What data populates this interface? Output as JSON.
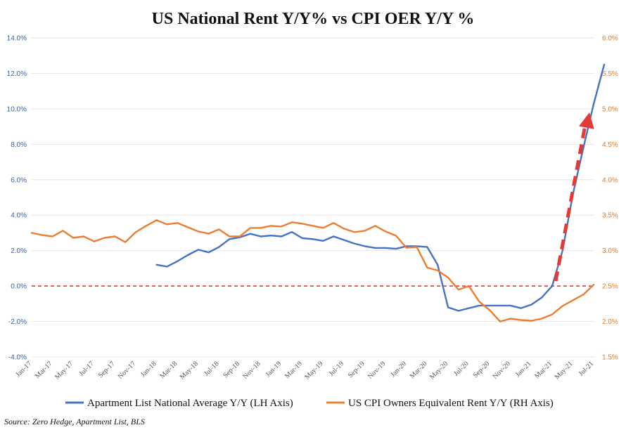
{
  "chart_data": {
    "type": "line",
    "title": "US National Rent Y/Y%  vs CPI OER Y/Y %",
    "source": "Source: Zero Hedge, Apartment List, BLS",
    "x_tick_labels": [
      "Jan-17",
      "Mar-17",
      "May-17",
      "Jul-17",
      "Sep-17",
      "Nov-17",
      "Jan-18",
      "Mar-18",
      "May-18",
      "Jul-18",
      "Sep-18",
      "Nov-18",
      "Jan-19",
      "Mar-19",
      "May-19",
      "Jul-19",
      "Sep-19",
      "Nov-19",
      "Jan-20",
      "Mar-20",
      "May-20",
      "Jul-20",
      "Sep-20",
      "Nov-20",
      "Jan-21",
      "Mar-21",
      "May-21",
      "Jul-21"
    ],
    "y_left": {
      "ylim": [
        -4,
        14
      ],
      "tick_labels": [
        "-4.0%",
        "-2.0%",
        "0.0%",
        "2.0%",
        "4.0%",
        "6.0%",
        "8.0%",
        "10.0%",
        "12.0%",
        "14.0%"
      ],
      "tick_values": [
        -4,
        -2,
        0,
        2,
        4,
        6,
        8,
        10,
        12,
        14
      ]
    },
    "y_right": {
      "ylim": [
        1.5,
        6.0
      ],
      "tick_labels": [
        "1.5%",
        "2.0%",
        "2.5%",
        "3.0%",
        "3.5%",
        "4.0%",
        "4.5%",
        "5.0%",
        "5.5%",
        "6.0%"
      ],
      "tick_values": [
        1.5,
        2.0,
        2.5,
        3.0,
        3.5,
        4.0,
        4.5,
        5.0,
        5.5,
        6.0
      ]
    },
    "zero_line_value": 0,
    "series": [
      {
        "name": "Apartment List  National Average Y/Y (LH Axis)",
        "axis": "left",
        "color": "#4472c4",
        "start_index": 12,
        "values": [
          1.2,
          1.1,
          1.4,
          1.75,
          2.05,
          1.9,
          2.2,
          2.65,
          2.75,
          2.95,
          2.8,
          2.85,
          2.8,
          3.05,
          2.7,
          2.65,
          2.55,
          2.8,
          2.6,
          2.4,
          2.25,
          2.15,
          2.15,
          2.1,
          2.25,
          2.25,
          2.2,
          1.2,
          -1.2,
          -1.4,
          -1.25,
          -1.1,
          -1.1,
          -1.1,
          -1.1,
          -1.25,
          -1.05,
          -0.65,
          0.0,
          2.0,
          5.2,
          7.8,
          10.3,
          12.5
        ]
      },
      {
        "name": "US CPI Owners Equivalent Rent Y/Y (RH Axis)",
        "axis": "right",
        "color": "#ed7d31",
        "start_index": 0,
        "values": [
          3.25,
          3.22,
          3.2,
          3.28,
          3.18,
          3.2,
          3.13,
          3.18,
          3.2,
          3.12,
          3.26,
          3.35,
          3.43,
          3.37,
          3.39,
          3.33,
          3.27,
          3.24,
          3.3,
          3.2,
          3.2,
          3.32,
          3.32,
          3.35,
          3.34,
          3.4,
          3.38,
          3.35,
          3.32,
          3.39,
          3.31,
          3.26,
          3.28,
          3.35,
          3.27,
          3.21,
          3.04,
          3.05,
          2.76,
          2.72,
          2.62,
          2.45,
          2.5,
          2.28,
          2.16,
          2.0,
          2.04,
          2.02,
          2.01,
          2.04,
          2.1,
          2.22,
          2.3,
          2.38,
          2.52
        ]
      }
    ],
    "annotation": {
      "type": "dashed-arrow",
      "color": "#e53935"
    }
  }
}
